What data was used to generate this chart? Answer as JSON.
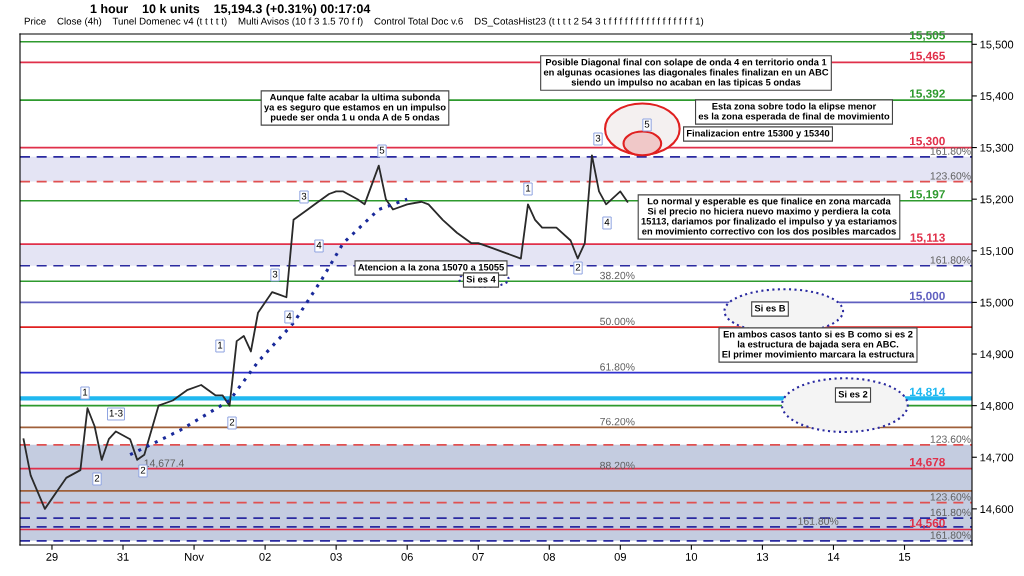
{
  "chart_data": {
    "type": "line",
    "subtitle": "1 hour    10 k units    15,194.3 (+0.31%) 00:17:04",
    "categories": [
      null,
      null,
      null,
      null,
      "29",
      null,
      null,
      null,
      null,
      null,
      null,
      null,
      null,
      null,
      "31",
      null,
      null,
      null,
      null,
      null,
      null,
      null,
      null,
      null,
      "Nov",
      null,
      null,
      null,
      null,
      null,
      null,
      null,
      null,
      null,
      "02",
      null,
      null,
      null,
      null,
      null,
      null,
      null,
      null,
      null,
      "03",
      null,
      null,
      null,
      null,
      null,
      null,
      null,
      null,
      null,
      "06",
      null,
      null,
      null,
      null,
      null,
      null,
      null,
      null,
      null,
      "07",
      null,
      null,
      null,
      null,
      null,
      null,
      null,
      null,
      null,
      "08",
      null,
      null,
      null,
      null,
      null,
      null,
      null,
      null,
      null,
      "09",
      null,
      null,
      null,
      null,
      null,
      null,
      null,
      null,
      null,
      "10",
      null,
      null,
      null,
      null,
      null,
      null,
      null,
      null,
      null,
      "13",
      null,
      null,
      null,
      null,
      null,
      null,
      null,
      null,
      null,
      "14",
      null,
      null,
      null,
      null,
      null,
      null,
      null,
      null,
      null,
      "15",
      null,
      null,
      null,
      null,
      null,
      null,
      null,
      null,
      null
    ],
    "ylim": [
      14530,
      15520
    ],
    "yticks": [
      {
        "value": 14600,
        "label": "14,600"
      },
      {
        "value": 14700,
        "label": "14,700"
      },
      {
        "value": 14800,
        "label": "14,800"
      },
      {
        "value": 14900,
        "label": "14,900"
      },
      {
        "value": 15000,
        "label": "15,000"
      },
      {
        "value": 15100,
        "label": "15,100"
      },
      {
        "value": 15200,
        "label": "15,200"
      },
      {
        "value": 15300,
        "label": "15,300"
      },
      {
        "value": 15400,
        "label": "15,400"
      },
      {
        "value": 15500,
        "label": "15,500"
      }
    ],
    "grid": false,
    "series": [
      {
        "color": "#2a2a2a",
        "line_style": "solid",
        "values": [
          14735,
          14665,
          null,
          14600,
          null,
          14640,
          14660,
          null,
          14675,
          14795,
          14760,
          14695,
          14735,
          14750,
          null,
          14735,
          14695,
          14705,
          null,
          14800,
          null,
          14810,
          null,
          14830,
          null,
          14840,
          null,
          14820,
          14820,
          14800,
          14925,
          14935,
          14905,
          14980,
          null,
          15020,
          15015,
          15010,
          15160,
          null,
          15180,
          15190,
          null,
          15210,
          15215,
          15215,
          null,
          15200,
          15190,
          null,
          15265,
          15200,
          15180,
          null,
          15190,
          null,
          15195,
          15190,
          null,
          15160,
          null,
          15135,
          null,
          15115,
          15115,
          null,
          15105,
          null,
          15095,
          null,
          15085,
          15190,
          15160,
          15145,
          null,
          15145,
          null,
          15120,
          15085,
          15115,
          15285,
          15215,
          15190,
          null,
          15215,
          15195,
          null,
          null,
          null,
          null,
          null,
          null,
          null,
          null,
          null,
          null,
          null,
          null,
          null,
          null,
          null,
          null,
          null,
          null,
          null,
          null,
          null,
          null,
          null,
          null,
          null,
          null,
          null,
          null,
          null,
          null,
          null,
          null,
          null,
          null,
          null,
          null,
          null,
          null,
          null,
          null,
          null,
          null,
          null,
          null,
          null,
          null,
          null,
          null
        ]
      },
      {
        "color": "#1a2a9a",
        "line_style": "dotted",
        "values": [
          null,
          null,
          null,
          null,
          null,
          null,
          null,
          null,
          null,
          null,
          null,
          null,
          null,
          null,
          null,
          14705,
          null,
          null,
          null,
          null,
          null,
          null,
          14752,
          null,
          null,
          null,
          null,
          null,
          null,
          14810,
          null,
          null,
          null,
          14885,
          null,
          null,
          null,
          null,
          14960,
          null,
          null,
          null,
          15045,
          null,
          null,
          15115,
          null,
          null,
          null,
          null,
          15180,
          null,
          null,
          null,
          15200,
          null,
          null,
          null,
          null,
          null,
          null,
          null,
          null,
          null,
          null,
          null,
          null,
          null,
          null,
          null,
          null,
          null,
          null,
          null,
          null,
          null,
          null,
          null,
          null,
          null,
          null,
          null,
          null,
          null,
          null,
          null,
          null,
          null,
          null,
          null,
          null,
          null,
          null,
          null,
          null,
          null,
          null,
          null,
          null,
          null,
          null,
          null,
          null,
          null,
          null,
          null,
          null,
          null,
          null,
          null,
          null,
          null,
          null,
          null,
          null,
          null,
          null,
          null,
          null,
          null,
          null,
          null,
          null,
          null,
          null,
          null,
          null,
          null,
          null,
          null,
          null,
          null,
          null,
          null
        ]
      }
    ],
    "ref_lines": [
      {
        "axis": "y",
        "value": 15505,
        "label": "15,505",
        "color": "#2e9a2e",
        "line_style": "solid"
      },
      {
        "axis": "y",
        "value": 15465,
        "label": "15,465",
        "color": "#e0304a",
        "line_style": "solid"
      },
      {
        "axis": "y",
        "value": 15392,
        "label": "15,392",
        "color": "#2e9a2e",
        "line_style": "solid"
      },
      {
        "axis": "y",
        "value": 15300,
        "label": "15,300",
        "color": "#e0304a",
        "line_style": "solid"
      },
      {
        "axis": "y",
        "value": 15282,
        "color": "#2a2aa0",
        "line_style": "dashed"
      },
      {
        "axis": "y",
        "value": 15234,
        "color": "#e05050",
        "line_style": "dashed"
      },
      {
        "axis": "y",
        "value": 15197,
        "label": "15,197",
        "color": "#2e9a2e",
        "line_style": "solid"
      },
      {
        "axis": "y",
        "value": 15113,
        "label": "15,113",
        "color": "#e0304a",
        "line_style": "solid"
      },
      {
        "axis": "y",
        "value": 15071,
        "color": "#2a2aa0",
        "line_style": "dashed"
      },
      {
        "axis": "y",
        "value": 15041,
        "color": "#2e9a2e",
        "line_style": "solid"
      },
      {
        "axis": "y",
        "value": 15000,
        "label": "15,000",
        "color": "#6060c0",
        "line_style": "solid"
      },
      {
        "axis": "y",
        "value": 14952,
        "color": "#e02020",
        "line_style": "solid"
      },
      {
        "axis": "y",
        "value": 14864,
        "color": "#3030d0",
        "line_style": "solid"
      },
      {
        "axis": "y",
        "value": 14814,
        "label": "14,814",
        "color": "#20b8f0",
        "line_style": "solid"
      },
      {
        "axis": "y",
        "value": 14800,
        "color": "#2e9a2e",
        "line_style": "solid"
      },
      {
        "axis": "y",
        "value": 14758,
        "color": "#a0603a",
        "line_style": "solid"
      },
      {
        "axis": "y",
        "value": 14724,
        "color": "#e05050",
        "line_style": "dashed"
      },
      {
        "axis": "y",
        "value": 14678,
        "label": "14,678",
        "color": "#e0304a",
        "line_style": "solid"
      },
      {
        "axis": "y",
        "value": 14635,
        "color": "#a0603a",
        "line_style": "solid"
      },
      {
        "axis": "y",
        "value": 14612,
        "color": "#e05050",
        "line_style": "dashed"
      },
      {
        "axis": "y",
        "value": 14582,
        "color": "#2a2aa0",
        "line_style": "dashed"
      },
      {
        "axis": "y",
        "value": 14565,
        "color": "#2a2aa0",
        "line_style": "dashed"
      },
      {
        "axis": "y",
        "value": 14560,
        "label": "14,560",
        "color": "#e0304a",
        "line_style": "solid"
      },
      {
        "axis": "y",
        "value": 14538,
        "color": "#2a2aa0",
        "line_style": "dashed"
      }
    ],
    "bands": [
      {
        "axis": "y",
        "from": 15234,
        "to": 15282,
        "color": "#e4e4f4"
      },
      {
        "axis": "y",
        "from": 15071,
        "to": 15113,
        "color": "#e4e4f4"
      },
      {
        "axis": "y",
        "from": 14538,
        "to": 14724,
        "color": "#c4cce0"
      }
    ],
    "annotations": [
      "Price    Close (4h)    Tunel Domenec v4 (t t t t t)    Multi Avisos (10 f 3 1.5 70 f f)    Control Total Doc v.6    DS_CotasHist23 (t t t t 2 54 3 t f f f f f f f f f f f f f f f f 1)",
      "Aunque falte acabar la ultima subonda\nya es seguro que estamos en un impulso\npuede ser onda 1 u onda A de 5 ondas",
      "Posible Diagonal final con solape de onda 4 en territorio onda 1\nen algunas ocasiones las diagonales finales finalizan en un ABC\nsiendo un impulso no acaban en las tipicas 5 ondas",
      "Esta zona sobre todo la elipse menor\nes la zona esperada de final de movimiento",
      "Finalizacion entre 15300 y 15340",
      "Lo normal y esperable es que finalice en zona marcada\nSi el precio no hiciera nuevo maximo y perdiera la cota\n15113, dariamos por finalizado el impulso y ya estariamos\nen movimiento correctivo con los dos posibles marcados",
      "Atencion a la zona 15070 a 15055",
      "En ambos casos tanto si es B como si es 2\nla estructura de bajada sera en ABC.\nEl primer movimiento marcara la estructura",
      "Si es 4",
      "Si es B",
      "Si es 2",
      "1",
      "1-3",
      "2",
      "2",
      "1",
      "2",
      "3",
      "4",
      "3",
      "4",
      "5",
      "1",
      "2",
      "3",
      "4",
      "5",
      {
        "text": "38.20%",
        "y": 15041
      },
      {
        "text": "50.00%",
        "y": 14952
      },
      {
        "text": "61.80%",
        "y": 14864
      },
      {
        "text": "76.20%",
        "y": 14758
      },
      {
        "text": "88.20%",
        "y": 14673
      },
      {
        "text": "14,677.4",
        "y": 14677.4
      },
      {
        "text": "161.80%",
        "y": 15282
      },
      {
        "text": "123.60%",
        "y": 15234
      },
      {
        "text": "161.80%",
        "y": 15071
      },
      {
        "text": "123.60%",
        "y": 14724
      },
      {
        "text": "123.60%",
        "y": 14612
      },
      {
        "text": "161.80%",
        "y": 14582
      },
      {
        "text": "161.80%",
        "y": 14565
      },
      {
        "text": "161.80%",
        "y": 14538
      }
    ]
  }
}
